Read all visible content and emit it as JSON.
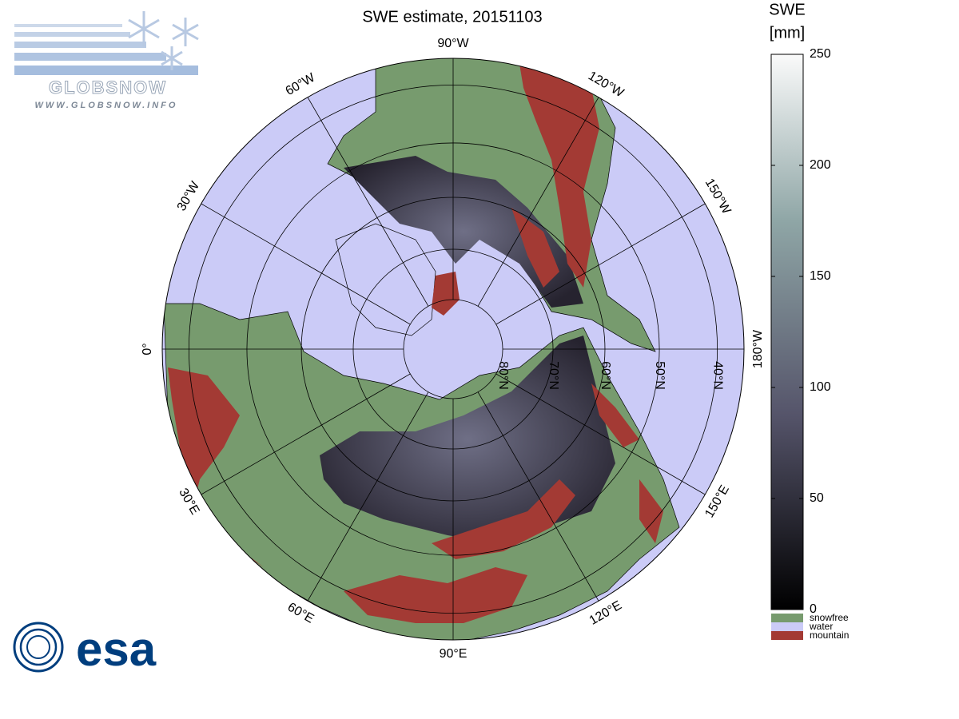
{
  "title": "SWE estimate, 20151103",
  "map": {
    "meridians": [
      {
        "value": 0,
        "label": "0°"
      },
      {
        "value": -30,
        "label": "30°W"
      },
      {
        "value": -60,
        "label": "60°W"
      },
      {
        "value": -90,
        "label": "90°W"
      },
      {
        "value": -120,
        "label": "120°W"
      },
      {
        "value": -150,
        "label": "150°W"
      },
      {
        "value": 180,
        "label": "180°W"
      },
      {
        "value": 150,
        "label": "150°E"
      },
      {
        "value": 120,
        "label": "120°E"
      },
      {
        "value": 90,
        "label": "90°E"
      },
      {
        "value": 60,
        "label": "60°E"
      },
      {
        "value": 30,
        "label": "30°E"
      }
    ],
    "parallels": [
      {
        "value": 80,
        "label": "80°N"
      },
      {
        "value": 70,
        "label": "70°N"
      },
      {
        "value": 60,
        "label": "60°N"
      },
      {
        "value": 50,
        "label": "50°N"
      },
      {
        "value": 40,
        "label": "40°N"
      }
    ]
  },
  "colorbar": {
    "title": [
      "SWE",
      "[mm]"
    ],
    "lim": [
      0,
      250
    ],
    "ticks": [
      0,
      50,
      100,
      150,
      200,
      250
    ]
  },
  "legend": [
    {
      "label": "snowfree",
      "color": "#779b6e"
    },
    {
      "label": "water",
      "color": "#cbcbf7"
    },
    {
      "label": "mountain",
      "color": "#a33a34"
    }
  ],
  "logos": {
    "globsnow": "GLOBSNOW",
    "globsnow_url": "WWW.GLOBSNOW.INFO",
    "esa": "esa"
  }
}
